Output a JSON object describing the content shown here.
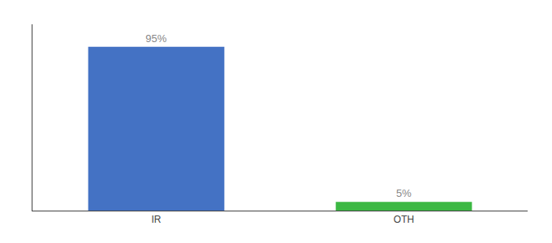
{
  "chart_data": {
    "type": "bar",
    "categories": [
      "IR",
      "OTH"
    ],
    "values": [
      95,
      5
    ],
    "value_labels": [
      "95%",
      "5%"
    ],
    "colors": [
      "#4472c4",
      "#3cb843"
    ],
    "ylim": [
      0,
      108
    ],
    "tick_labels": "x",
    "data_labels": true,
    "grid": false
  }
}
